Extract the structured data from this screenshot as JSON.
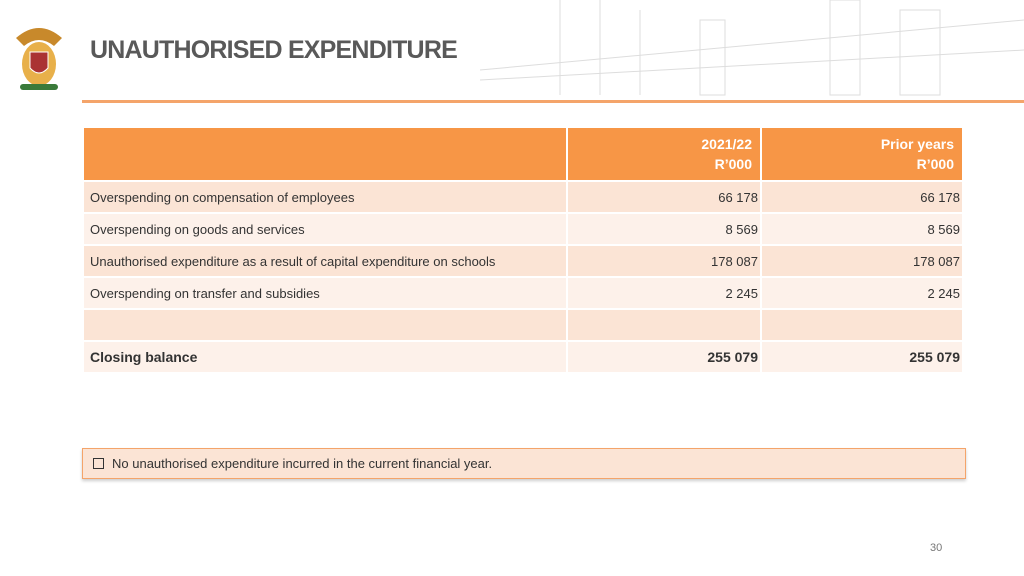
{
  "header": {
    "title": "UNAUTHORISED EXPENDITURE"
  },
  "table": {
    "columns": [
      [
        "2021/22",
        "R’000"
      ],
      [
        "Prior years",
        "R’000"
      ]
    ],
    "rows": [
      [
        "Overspending on compensation of employees",
        "66 178",
        "66 178"
      ],
      [
        "Overspending on goods and services",
        "8 569",
        "8 569"
      ],
      [
        "Unauthorised expenditure as a result of capital expenditure on schools",
        "178 087",
        "178 087"
      ],
      [
        "Overspending on transfer and subsidies",
        "2 245",
        "2 245"
      ]
    ],
    "total": [
      "Closing balance",
      "255 079",
      "255 079"
    ]
  },
  "note": "No unauthorised expenditure incurred in the current financial year.",
  "page_number": "30"
}
